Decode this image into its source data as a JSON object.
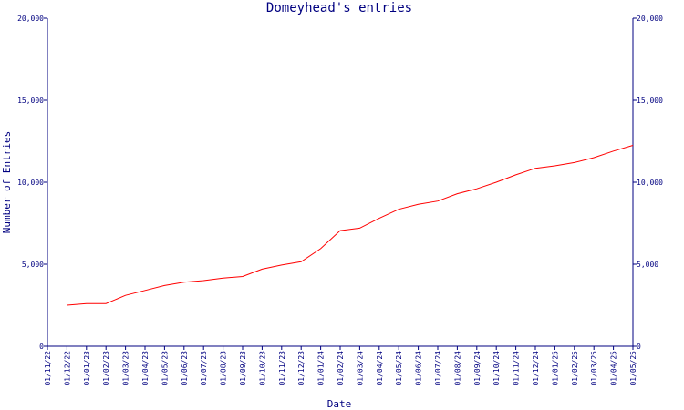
{
  "chart_data": {
    "type": "line",
    "title": "Domeyhead's entries",
    "xlabel": "Date",
    "ylabel": "Number of Entries",
    "ylim": [
      0,
      20000
    ],
    "yticks": [
      0,
      5000,
      10000,
      15000,
      20000
    ],
    "ytick_labels": [
      "0",
      "5,000",
      "10,000",
      "15,000",
      "20,000"
    ],
    "categories": [
      "01/11/22",
      "01/12/22",
      "01/01/23",
      "01/02/23",
      "01/03/23",
      "01/04/23",
      "01/05/23",
      "01/06/23",
      "01/07/23",
      "01/08/23",
      "01/09/23",
      "01/10/23",
      "01/11/23",
      "01/12/23",
      "01/01/24",
      "01/02/24",
      "01/03/24",
      "01/04/24",
      "01/05/24",
      "01/06/24",
      "01/07/24",
      "01/08/24",
      "01/09/24",
      "01/10/24",
      "01/11/24",
      "01/12/24",
      "01/01/25",
      "01/02/25",
      "01/03/25",
      "01/04/25",
      "01/05/25"
    ],
    "grid": false,
    "line_color": "#ff0000",
    "axis_color": "#000080",
    "series": [
      {
        "x": [
          "01/12/22",
          "01/01/23",
          "01/02/23",
          "01/03/23",
          "01/04/23",
          "01/05/23",
          "01/06/23",
          "01/07/23",
          "01/08/23",
          "01/09/23",
          "01/10/23",
          "01/11/23",
          "01/12/23",
          "01/01/24",
          "01/02/24",
          "01/03/24",
          "01/04/24",
          "01/05/24",
          "01/06/24",
          "01/07/24",
          "01/08/24",
          "01/09/24",
          "01/10/24",
          "01/11/24",
          "01/12/24",
          "01/01/25",
          "01/02/25",
          "01/03/25",
          "01/04/25",
          "01/05/25"
        ],
        "values": [
          2500,
          2600,
          2600,
          3100,
          3400,
          3700,
          3900,
          4000,
          4150,
          4250,
          4700,
          4950,
          5150,
          5950,
          7050,
          7200,
          7800,
          8350,
          8650,
          8850,
          9300,
          9600,
          10000,
          10450,
          10850,
          11000,
          11200,
          11500,
          11900,
          12250
        ]
      }
    ]
  }
}
